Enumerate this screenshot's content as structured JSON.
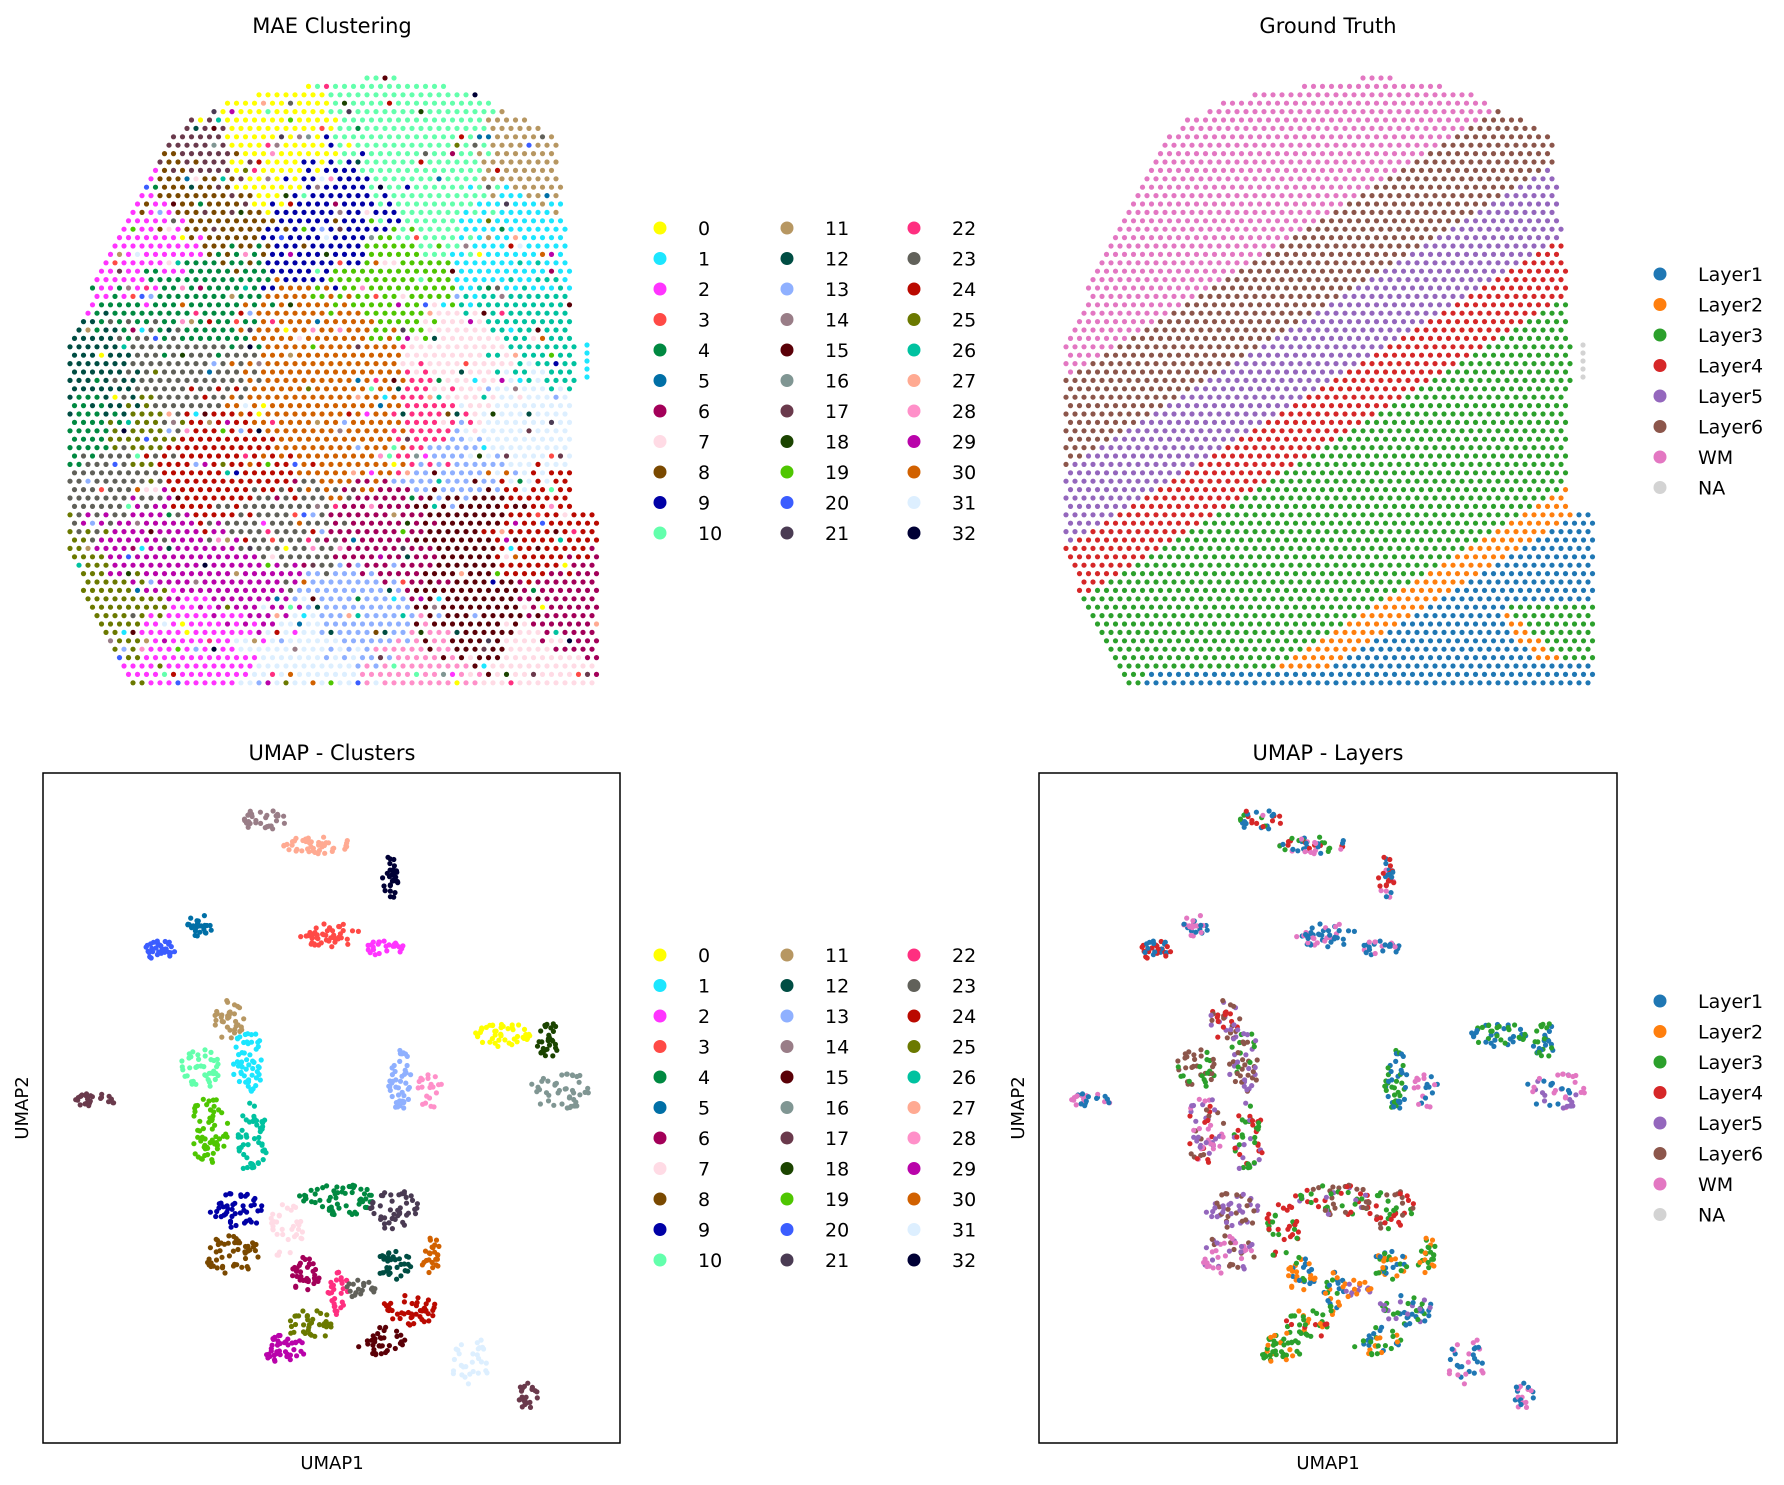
{
  "chart_data": [
    {
      "type": "scatter",
      "title": "MAE Clustering",
      "xlabel": "",
      "ylabel": "",
      "frame": false,
      "legend_columns": 3,
      "legend_placement": "right",
      "categories": [
        "0",
        "1",
        "2",
        "3",
        "4",
        "5",
        "6",
        "7",
        "8",
        "9",
        "10",
        "11",
        "12",
        "13",
        "14",
        "15",
        "16",
        "17",
        "18",
        "19",
        "20",
        "21",
        "22",
        "23",
        "24",
        "25",
        "26",
        "27",
        "28",
        "29",
        "30",
        "31",
        "32"
      ]
    },
    {
      "type": "scatter",
      "title": "Ground Truth",
      "xlabel": "",
      "ylabel": "",
      "frame": false,
      "legend_columns": 1,
      "legend_placement": "right",
      "categories": [
        "Layer1",
        "Layer2",
        "Layer3",
        "Layer4",
        "Layer5",
        "Layer6",
        "WM",
        "NA"
      ]
    },
    {
      "type": "scatter",
      "title": "UMAP - Clusters",
      "xlabel": "UMAP1",
      "ylabel": "UMAP2",
      "frame": true,
      "legend_columns": 3,
      "legend_placement": "right",
      "categories": [
        "0",
        "1",
        "2",
        "3",
        "4",
        "5",
        "6",
        "7",
        "8",
        "9",
        "10",
        "11",
        "12",
        "13",
        "14",
        "15",
        "16",
        "17",
        "18",
        "19",
        "20",
        "21",
        "22",
        "23",
        "24",
        "25",
        "26",
        "27",
        "28",
        "29",
        "30",
        "31",
        "32"
      ]
    },
    {
      "type": "scatter",
      "title": "UMAP - Layers",
      "xlabel": "UMAP1",
      "ylabel": "UMAP2",
      "frame": true,
      "legend_columns": 1,
      "legend_placement": "right",
      "categories": [
        "Layer1",
        "Layer2",
        "Layer3",
        "Layer4",
        "Layer5",
        "Layer6",
        "WM",
        "NA"
      ]
    }
  ],
  "colors": {
    "clusters": [
      "#ffff00",
      "#1ce6ff",
      "#ff34ff",
      "#ff4a46",
      "#008941",
      "#006fa6",
      "#a30059",
      "#ffdbe5",
      "#7a4900",
      "#0000a6",
      "#63ffac",
      "#b79762",
      "#004d43",
      "#8fb0ff",
      "#997d87",
      "#5a0007",
      "#809693",
      "#6a3a4c",
      "#1b4400",
      "#4fc601",
      "#3b5dff",
      "#4a3b53",
      "#ff2f80",
      "#61615a",
      "#ba0900",
      "#6b7900",
      "#00c2a0",
      "#ffaa92",
      "#ff90c9",
      "#b903aa",
      "#d16100",
      "#ddefff",
      "#000035"
    ],
    "layers": [
      "#1f77b4",
      "#ff7f0e",
      "#2ca02c",
      "#d62728",
      "#9467bd",
      "#8c564b",
      "#e377c2",
      "#d3d3d3"
    ]
  }
}
